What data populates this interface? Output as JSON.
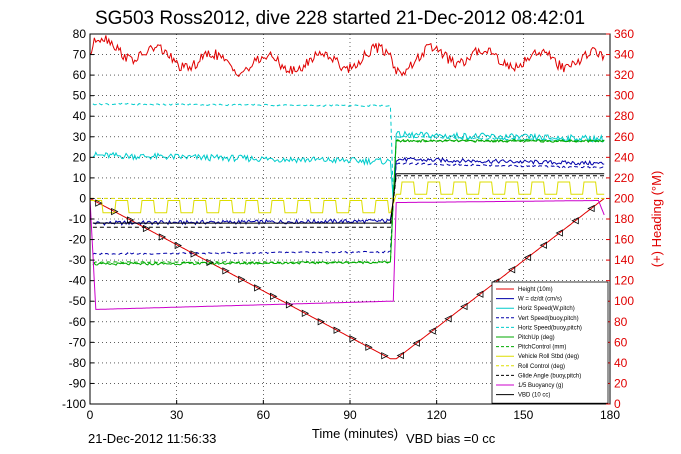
{
  "title": "SG503 Ross2012, dive 228 started 21-Dec-2012 08:42:01",
  "footer": {
    "timestamp": "21-Dec-2012 11:56:33",
    "vbd_bias": "VBD bias =0 cc"
  },
  "chart_data": {
    "type": "line",
    "xlabel": "Time (minutes)",
    "ylabel": "",
    "y2label": "(+) Heading (°M)",
    "xlim": [
      0,
      180
    ],
    "ylim": [
      -100,
      80
    ],
    "y2lim": [
      0,
      360
    ],
    "xticks": [
      0,
      30,
      60,
      90,
      120,
      150,
      180
    ],
    "yticks": [
      -100,
      -90,
      -80,
      -70,
      -60,
      -50,
      -40,
      -30,
      -20,
      -10,
      0,
      10,
      20,
      30,
      40,
      50,
      60,
      70,
      80
    ],
    "y2ticks": [
      0,
      20,
      40,
      60,
      80,
      100,
      120,
      140,
      160,
      180,
      200,
      220,
      240,
      260,
      280,
      300,
      320,
      340,
      360
    ],
    "grid": true,
    "legend_position": "bottom-right",
    "series": [
      {
        "name": "Height (10m)",
        "color": "#e00000",
        "style": "solid",
        "axis": "left",
        "x": [
          0,
          104,
          106,
          178
        ],
        "y": [
          0,
          -78,
          -78,
          0
        ]
      },
      {
        "name": "W = dz/dt (cm/s)",
        "color": "#0000aa",
        "style": "solid",
        "axis": "left",
        "x": [
          1,
          104,
          105,
          106,
          178
        ],
        "y": [
          -12,
          -11,
          0,
          19,
          17
        ]
      },
      {
        "name": "Horiz Speed(W,pitch)",
        "color": "#00cccc",
        "style": "solid",
        "axis": "left",
        "x": [
          1,
          104,
          105,
          106,
          178
        ],
        "y": [
          21,
          18,
          0,
          31,
          29
        ]
      },
      {
        "name": "Vert Speed(buoy,pitch)",
        "color": "#0000aa",
        "style": "dashed",
        "axis": "left",
        "x": [
          1,
          104,
          105,
          106,
          178
        ],
        "y": [
          -27,
          -26,
          0,
          17,
          15
        ]
      },
      {
        "name": "Horiz Speed(buoy,pitch)",
        "color": "#00cccc",
        "style": "dashed",
        "axis": "left",
        "x": [
          1,
          104,
          105,
          106,
          178
        ],
        "y": [
          46,
          45,
          0,
          30,
          28
        ]
      },
      {
        "name": "PitchUp (deg)",
        "color": "#00aa00",
        "style": "solid",
        "axis": "left",
        "x": [
          1,
          104,
          105,
          106,
          178
        ],
        "y": [
          -32,
          -31,
          0,
          28,
          28
        ]
      },
      {
        "name": "PitchControl (mm)",
        "color": "#00aa00",
        "style": "dashed",
        "axis": "left",
        "x": [
          1,
          104,
          105,
          106,
          178
        ],
        "y": [
          -31,
          -31,
          0,
          28,
          28
        ]
      },
      {
        "name": "Vehicle Roll Stbd (deg)",
        "color": "#dddd00",
        "style": "solid",
        "axis": "left",
        "x": [
          0,
          104,
          106,
          178
        ],
        "y": [
          -4,
          -4,
          5,
          5
        ]
      },
      {
        "name": "Roll Control (deg)",
        "color": "#dddd00",
        "style": "dashed",
        "axis": "left",
        "x": [
          0,
          104,
          106,
          178
        ],
        "y": [
          0,
          0,
          0,
          0
        ]
      },
      {
        "name": "Glide Angle (buoy,pitch)",
        "color": "#000000",
        "style": "dashed",
        "axis": "left",
        "x": [
          1,
          104,
          106,
          178
        ],
        "y": [
          -14,
          -14,
          11,
          11
        ]
      },
      {
        "name": "1/5 Buoyancy (g)",
        "color": "#cc00cc",
        "style": "solid",
        "axis": "left",
        "x": [
          0,
          2,
          104,
          105,
          106,
          176,
          178
        ],
        "y": [
          0,
          -54,
          -50,
          -50,
          -2,
          -1,
          -8
        ]
      },
      {
        "name": "VBD (10 cc)",
        "color": "#000000",
        "style": "solid",
        "axis": "left",
        "x": [
          1,
          104,
          106,
          178
        ],
        "y": [
          -12,
          -12,
          12,
          12
        ]
      },
      {
        "name": "Heading",
        "color": "#e00000",
        "style": "solid",
        "axis": "right",
        "x": [
          0,
          2,
          30,
          60,
          90,
          104,
          106,
          120,
          150,
          178
        ],
        "y": [
          340,
          350,
          335,
          330,
          335,
          340,
          330,
          340,
          335,
          335
        ]
      }
    ]
  }
}
